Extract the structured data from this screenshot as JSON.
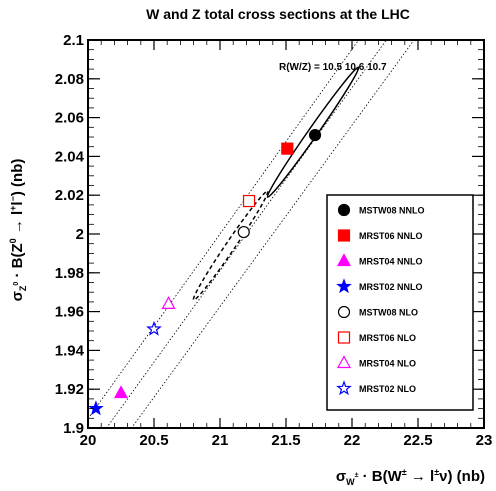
{
  "chart_data": {
    "type": "scatter",
    "title": "W and Z total cross sections at the LHC",
    "xlabel": {
      "lead": "σ",
      "lead_sub": "W",
      "lead_sup": "±",
      "mid": " · B(W",
      "mid_sup": "±",
      "arrow": " → l",
      "arrow_sup": "±",
      "tail": "ν)  (nb)"
    },
    "ylabel": {
      "lead": "σ",
      "lead_sub": "Z",
      "lead_sub_sup": "0",
      "mid": " · B(Z",
      "mid_sup": "0",
      "arrow": " → l",
      "arrow_sup1": "+",
      "l2": "l",
      "l2_sup": "−",
      "tail": ")  (nb)"
    },
    "xlim": [
      20,
      23
    ],
    "ylim": [
      1.9,
      2.1
    ],
    "xticks": [
      "20",
      "20.5",
      "21",
      "21.5",
      "22",
      "22.5",
      "23"
    ],
    "xtick_values": [
      20,
      20.5,
      21,
      21.5,
      22,
      22.5,
      23
    ],
    "yticks": [
      "1.9",
      "1.92",
      "1.94",
      "1.96",
      "1.98",
      "2",
      "2.02",
      "2.04",
      "2.06",
      "2.08",
      "2.1"
    ],
    "ytick_values": [
      1.9,
      1.92,
      1.94,
      1.96,
      1.98,
      2.0,
      2.02,
      2.04,
      2.06,
      2.08,
      2.1
    ],
    "ratio_label": "R(W/Z) = 10.5  10.6  10.7",
    "ratio_values": [
      10.5,
      10.6,
      10.7
    ],
    "series": [
      {
        "name": "MSTW08 NNLO",
        "marker": "circle",
        "filled": true,
        "color": "#000000",
        "x": 21.72,
        "y": 2.051
      },
      {
        "name": "MRST06 NNLO",
        "marker": "square",
        "filled": true,
        "color": "#ff0000",
        "x": 21.51,
        "y": 2.044
      },
      {
        "name": "MRST04 NNLO",
        "marker": "triangle",
        "filled": true,
        "color": "#ff00ff",
        "x": 20.25,
        "y": 1.918
      },
      {
        "name": "MRST02 NNLO",
        "marker": "star",
        "filled": true,
        "color": "#0000ff",
        "x": 20.06,
        "y": 1.91
      },
      {
        "name": "MSTW08 NLO",
        "marker": "circle",
        "filled": false,
        "color": "#000000",
        "x": 21.18,
        "y": 2.001
      },
      {
        "name": "MRST06 NLO",
        "marker": "square",
        "filled": false,
        "color": "#ff0000",
        "x": 21.22,
        "y": 2.017
      },
      {
        "name": "MRST04 NLO",
        "marker": "triangle",
        "filled": false,
        "color": "#ff00ff",
        "x": 20.61,
        "y": 1.964
      },
      {
        "name": "MRST02 NLO",
        "marker": "star",
        "filled": false,
        "color": "#0000ff",
        "x": 20.5,
        "y": 1.951
      }
    ],
    "ellipses": [
      {
        "style": "solid",
        "points": [
          [
            21.36,
            2.019
          ],
          [
            22.05,
            2.086
          ]
        ],
        "minor_x": 0.07
      },
      {
        "style": "dashed",
        "points": [
          [
            20.8,
            1.966
          ],
          [
            21.36,
            2.022
          ]
        ],
        "minor_x": 0.07
      }
    ],
    "legend_position": "bottom-right",
    "grid": false
  }
}
